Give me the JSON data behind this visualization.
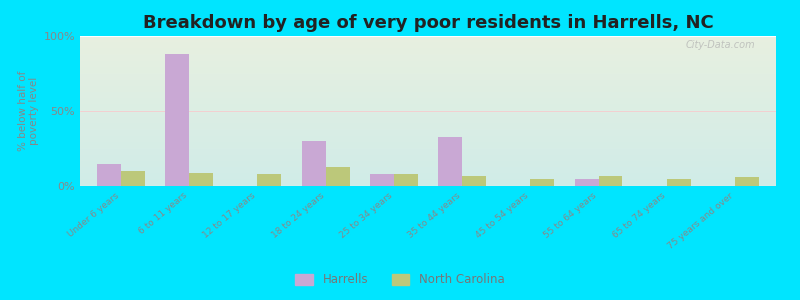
{
  "title": "Breakdown by age of very poor residents in Harrells, NC",
  "ylabel": "% below half of\npoverty level",
  "categories": [
    "Under 6 years",
    "6 to 11 years",
    "12 to 17 years",
    "18 to 24 years",
    "25 to 34 years",
    "35 to 44 years",
    "45 to 54 years",
    "55 to 64 years",
    "65 to 74 years",
    "75 years and over"
  ],
  "harrells": [
    15,
    88,
    0,
    30,
    8,
    33,
    0,
    5,
    0,
    0
  ],
  "nc": [
    10,
    9,
    8,
    13,
    8,
    7,
    5,
    7,
    5,
    6
  ],
  "harrells_color": "#c9a8d4",
  "nc_color": "#bcc87a",
  "ylim": [
    0,
    100
  ],
  "yticks": [
    0,
    50,
    100
  ],
  "ytick_labels": [
    "0%",
    "50%",
    "100%"
  ],
  "title_fontsize": 13,
  "legend_harrells": "Harrells",
  "legend_nc": "North Carolina",
  "bar_width": 0.35,
  "outer_bg_color": "#00e5ff",
  "watermark": "City-Data.com"
}
